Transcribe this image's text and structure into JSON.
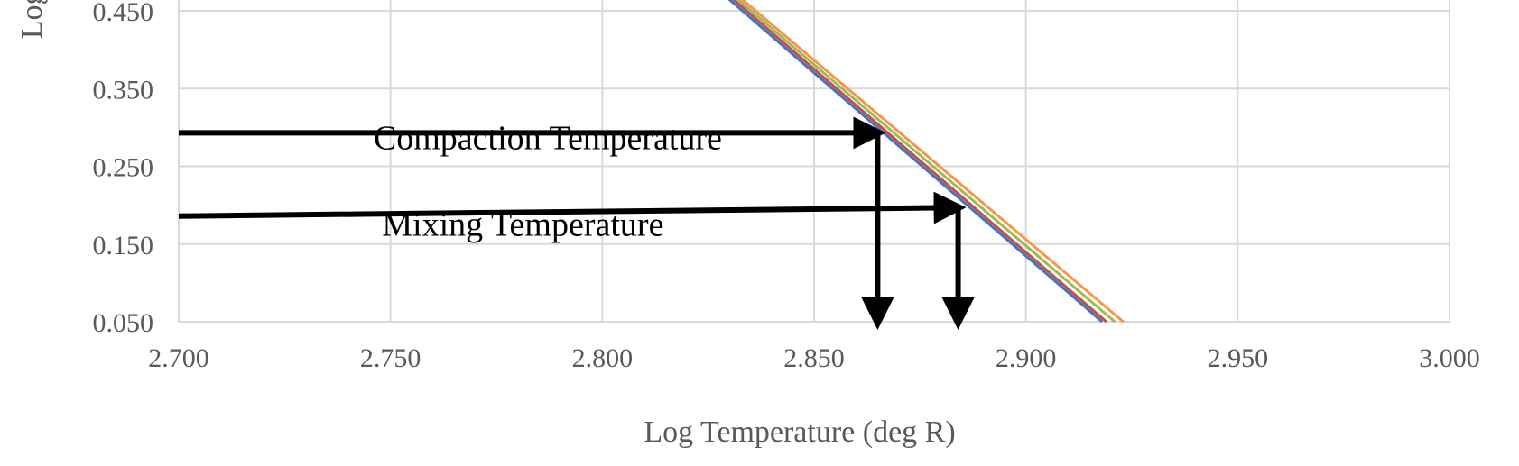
{
  "chart_data": {
    "type": "line",
    "title": "",
    "xlabel": "Log Temperature (deg R)",
    "ylabel": "Log I",
    "xlim": [
      2.7,
      3.0
    ],
    "ylim": [
      0.05,
      0.45
    ],
    "x_ticks": [
      "2.700",
      "2.750",
      "2.800",
      "2.850",
      "2.900",
      "2.950",
      "3.000"
    ],
    "y_ticks": [
      "0.050",
      "0.150",
      "0.250",
      "0.350",
      "0.450"
    ],
    "grid": true,
    "legend": "none",
    "series": [
      {
        "color": "#4472c4",
        "points": [
          [
            2.828,
            0.474
          ],
          [
            2.918,
            0.05
          ]
        ]
      },
      {
        "color": "#c0504d",
        "points": [
          [
            2.829,
            0.474
          ],
          [
            2.919,
            0.05
          ]
        ]
      },
      {
        "color": "#9bbb59",
        "points": [
          [
            2.83,
            0.474
          ],
          [
            2.921,
            0.05
          ]
        ]
      },
      {
        "color": "#f79646",
        "points": [
          [
            2.831,
            0.474
          ],
          [
            2.923,
            0.05
          ]
        ]
      }
    ],
    "annotations": [
      {
        "text": "Compaction Temperature",
        "x": 2.746,
        "y": 0.272
      },
      {
        "text": "Mixing Temperature",
        "x": 2.748,
        "y": 0.161
      }
    ],
    "arrows": [
      {
        "name": "compaction-horizontal",
        "from": [
          2.7,
          0.293
        ],
        "to": [
          2.865,
          0.293
        ]
      },
      {
        "name": "compaction-vertical",
        "from": [
          2.865,
          0.293
        ],
        "to": [
          2.865,
          0.05
        ]
      },
      {
        "name": "mixing-horizontal",
        "from": [
          2.7,
          0.186
        ],
        "to": [
          2.884,
          0.197
        ]
      },
      {
        "name": "mixing-vertical",
        "from": [
          2.884,
          0.197
        ],
        "to": [
          2.884,
          0.05
        ]
      }
    ]
  }
}
